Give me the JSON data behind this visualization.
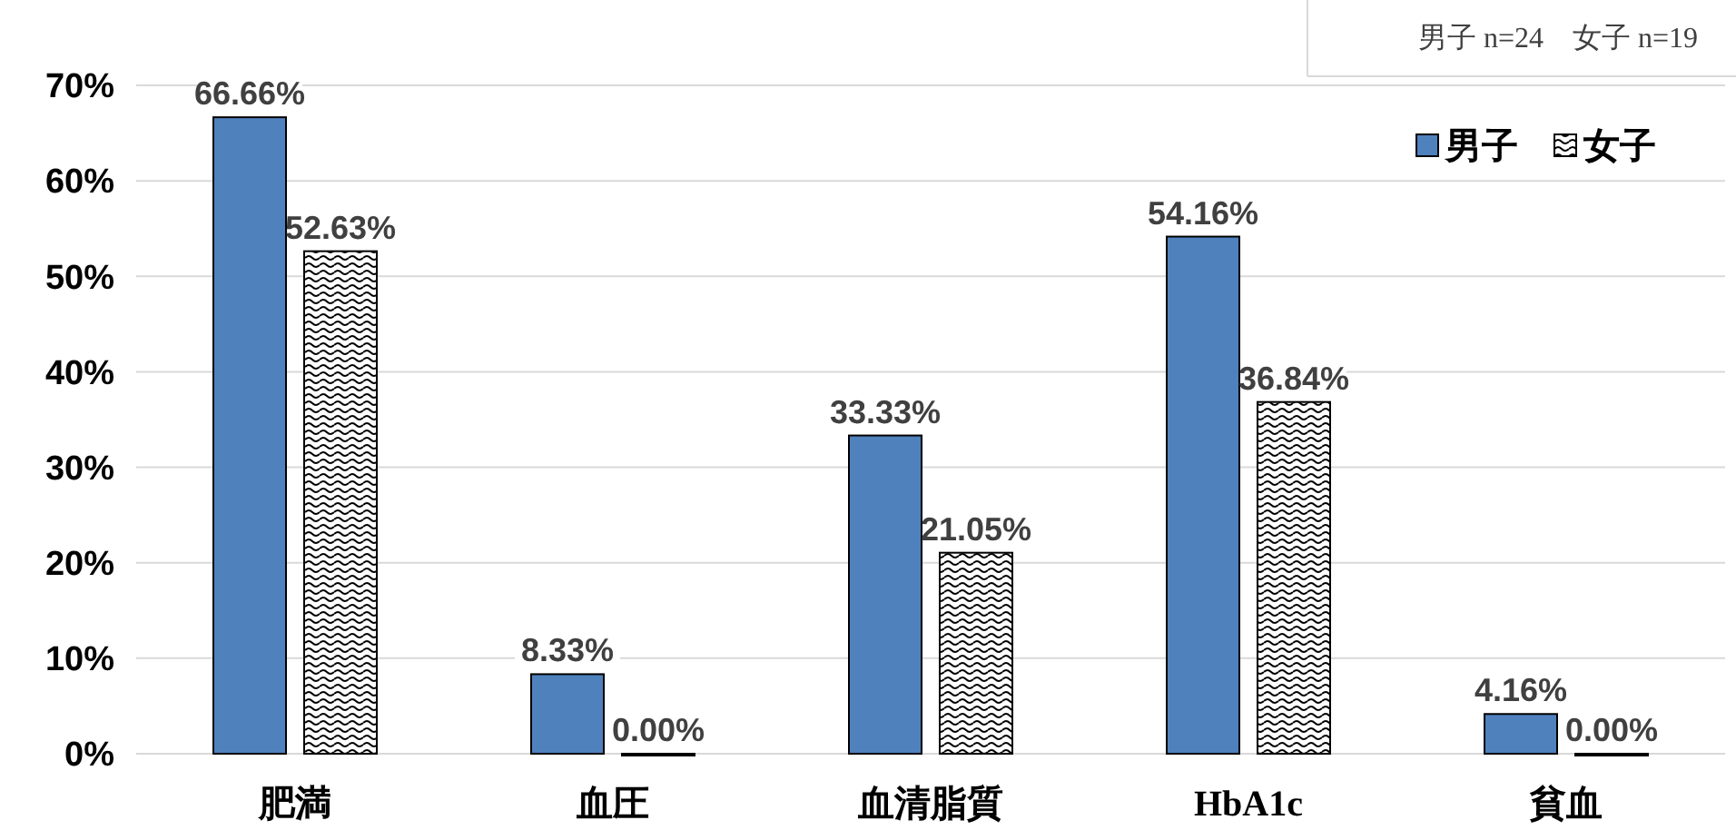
{
  "chart_data": {
    "type": "bar",
    "categories": [
      "肥満",
      "血圧",
      "血清脂質",
      "HbA1c",
      "貧血"
    ],
    "series": [
      {
        "name": "男子",
        "color": "#4f81bd",
        "values": [
          66.66,
          8.33,
          33.33,
          54.16,
          4.16
        ],
        "value_labels": [
          "66.66%",
          "8.33%",
          "33.33%",
          "54.16%",
          "4.16%"
        ]
      },
      {
        "name": "女子",
        "color": "#000000",
        "values": [
          52.63,
          0,
          21.05,
          36.84,
          0
        ],
        "value_labels": [
          "52.63%",
          "0.00%",
          "21.05%",
          "36.84%",
          "0.00%"
        ]
      }
    ],
    "ylim": [
      0,
      70
    ],
    "yticks": [
      {
        "value": 0,
        "label": "0%"
      },
      {
        "value": 10,
        "label": "10%"
      },
      {
        "value": 20,
        "label": "20%"
      },
      {
        "value": 30,
        "label": "30%"
      },
      {
        "value": 40,
        "label": "40%"
      },
      {
        "value": 50,
        "label": "50%"
      },
      {
        "value": 60,
        "label": "60%"
      },
      {
        "value": 70,
        "label": "70%"
      }
    ],
    "grid": "y",
    "legend": "top right",
    "annotations": [
      "男子 n=24　女子 n=19"
    ]
  }
}
